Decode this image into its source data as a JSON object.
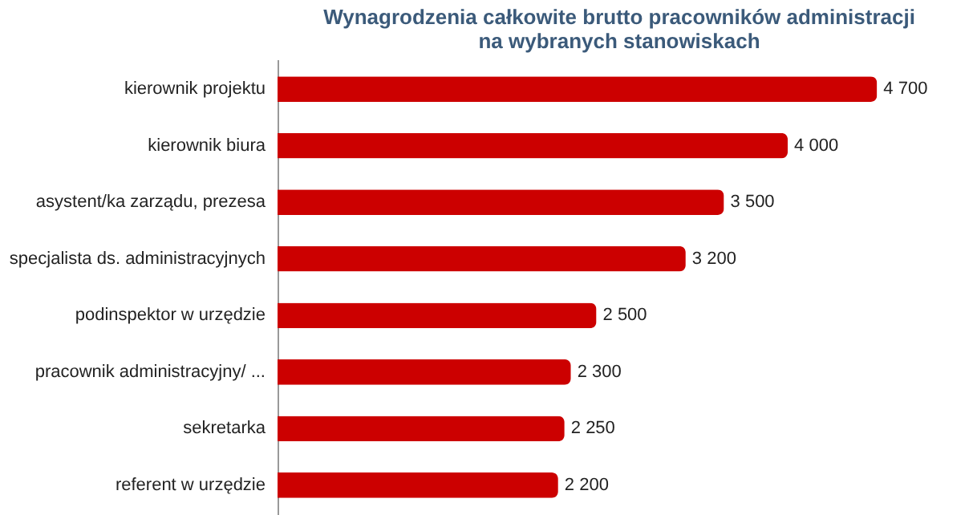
{
  "chart_data": {
    "type": "bar",
    "orientation": "horizontal",
    "title": [
      "Wynagrodzenia całkowite brutto pracowników administracji",
      "na wybranych stanowiskach"
    ],
    "categories": [
      "kierownik projektu",
      "kierownik biura",
      "asystent/ka zarządu, prezesa",
      "specjalista ds. administracyjnych",
      "podinspektor w urzędzie",
      "pracownik administracyjny/ ...",
      "sekretarka",
      "referent w urzędzie"
    ],
    "values": [
      4700,
      4000,
      3500,
      3200,
      2500,
      2300,
      2250,
      2200
    ],
    "value_labels": [
      "4 700",
      "4 000",
      "3 500",
      "3 200",
      "2 500",
      "2 300",
      "2 250",
      "2 200"
    ],
    "color": "#cc0000",
    "grid": false
  }
}
